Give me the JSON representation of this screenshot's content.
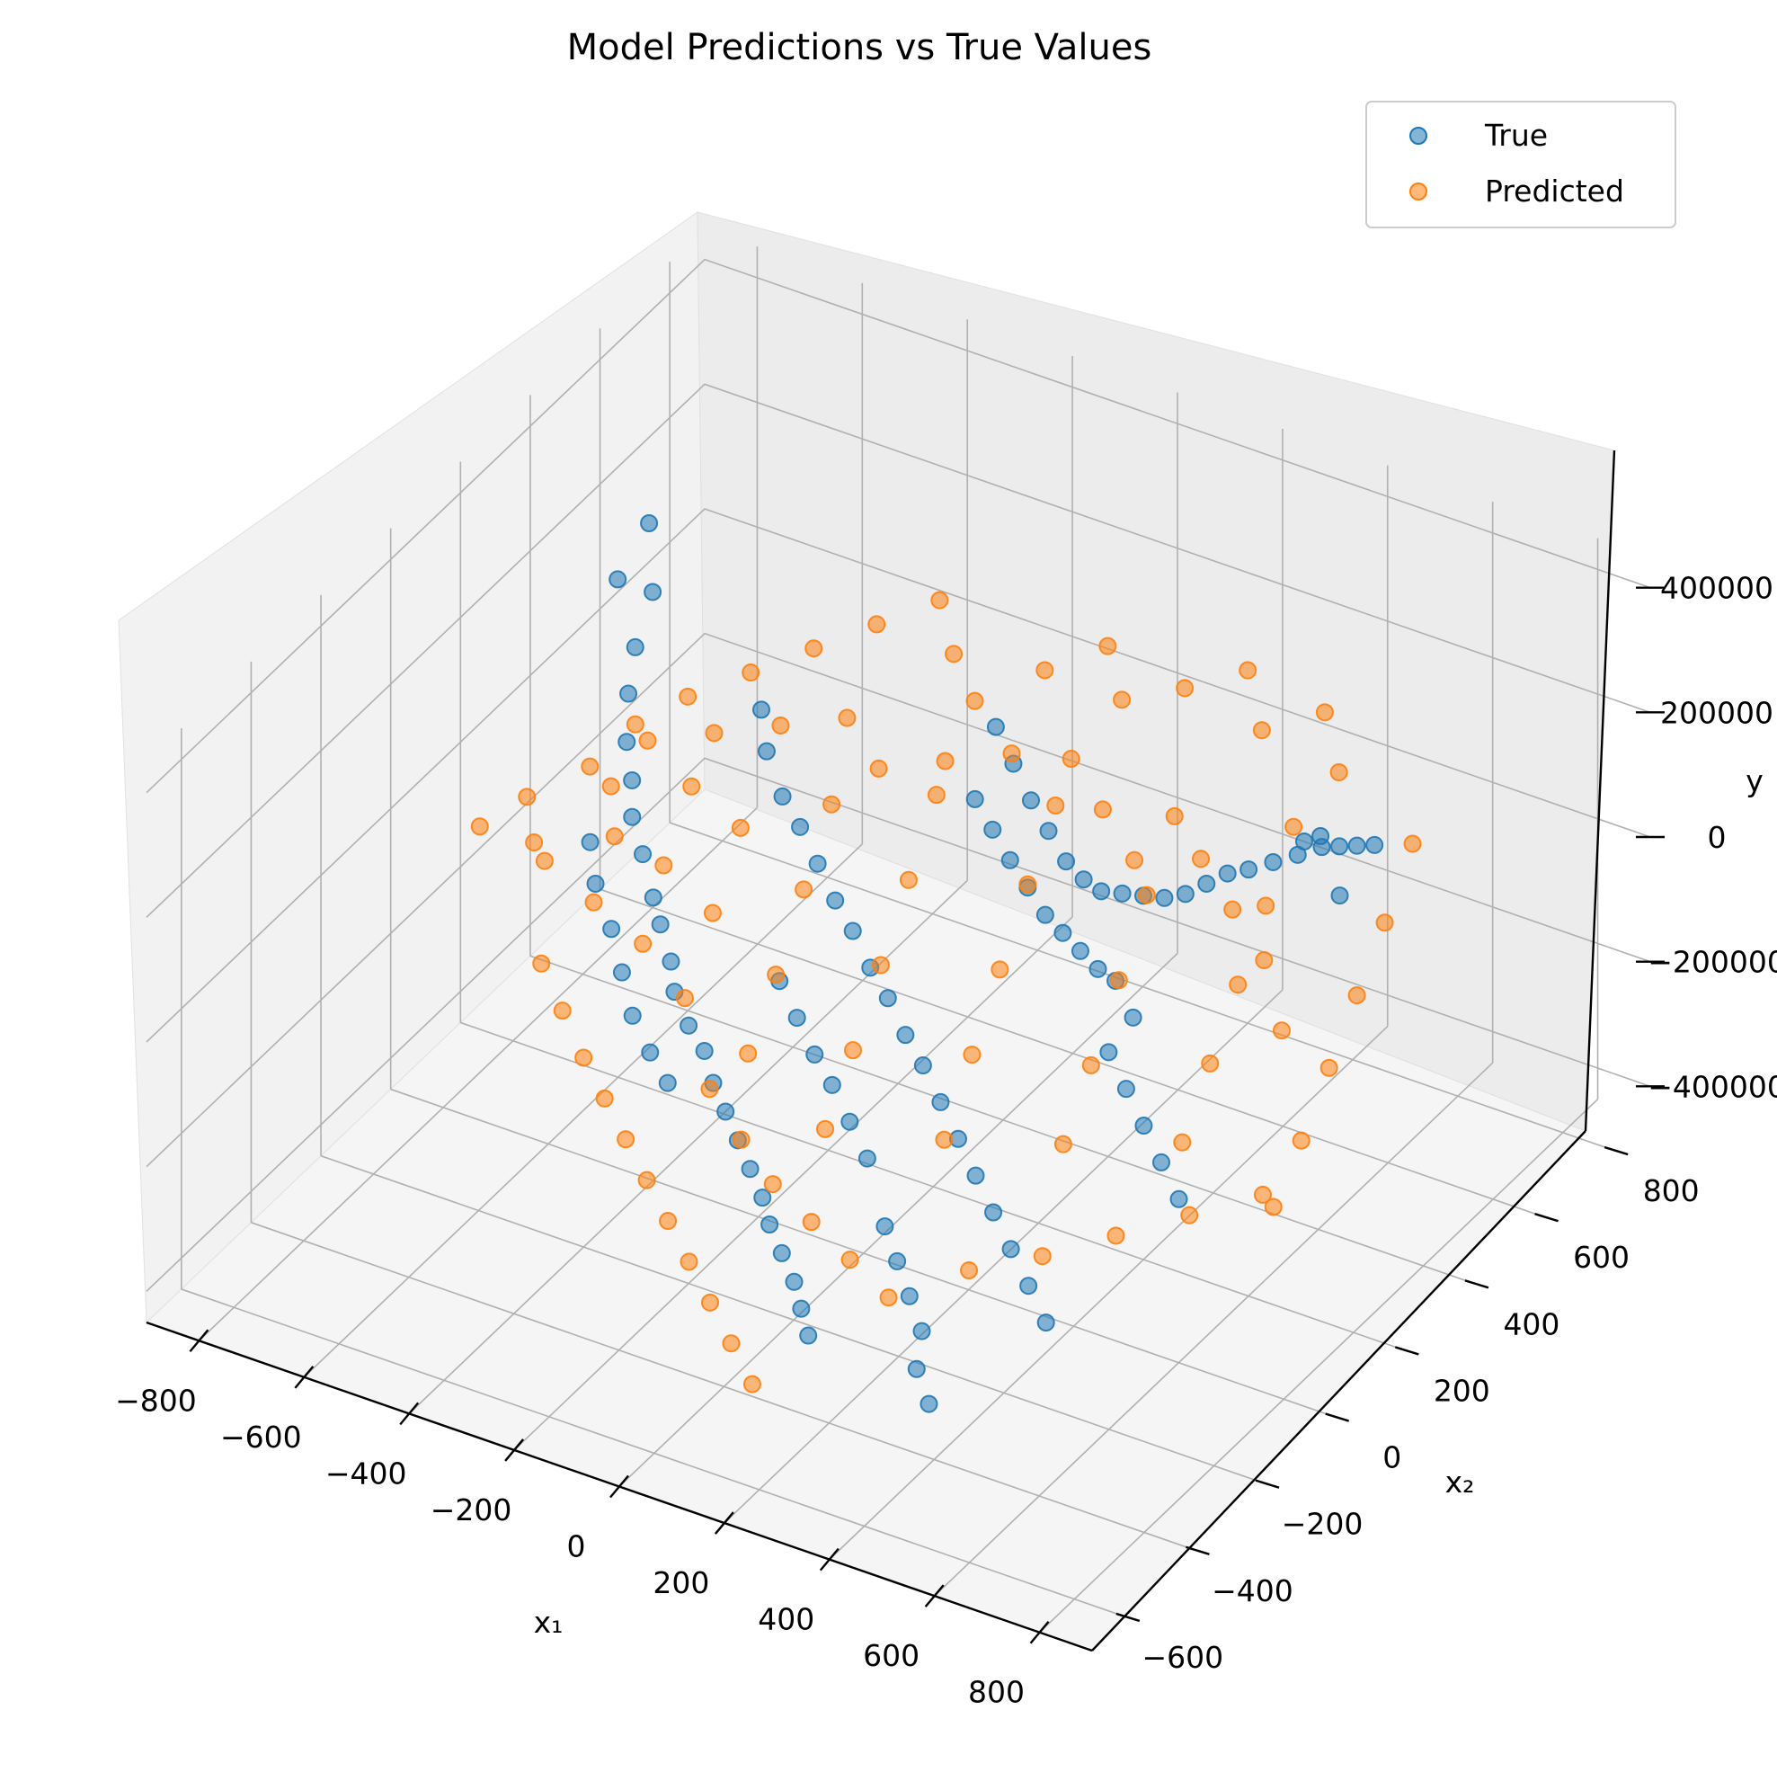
{
  "chart_data": {
    "type": "scatter",
    "projection": "3d",
    "title": "Model Predictions vs True Values",
    "xlabel": "x₁",
    "ylabel": "x₂",
    "zlabel": "y",
    "xlim": [
      -900,
      900
    ],
    "ylim": [
      -700,
      900
    ],
    "zlim": [
      -450000,
      450000
    ],
    "x_ticks": [
      -800,
      -600,
      -400,
      -200,
      0,
      200,
      400,
      600,
      800
    ],
    "y_ticks": [
      -600,
      -400,
      -200,
      0,
      200,
      400,
      600,
      800
    ],
    "z_ticks": [
      -400000,
      -200000,
      0,
      200000,
      400000
    ],
    "x_tick_labels": [
      "−800",
      "−600",
      "−400",
      "−200",
      "0",
      "200",
      "400",
      "600",
      "800"
    ],
    "y_tick_labels": [
      "−600",
      "−400",
      "−200",
      "0",
      "200",
      "400",
      "600",
      "800"
    ],
    "z_tick_labels": [
      "−400000",
      "−200000",
      "0",
      "200000",
      "400000"
    ],
    "grid": true,
    "legend_position": "top-right",
    "series": [
      {
        "name": "True",
        "color": "#1f77b4",
        "points": [
          [
            -820,
            620,
            150000
          ],
          [
            -800,
            500,
            130000
          ],
          [
            -760,
            540,
            100000
          ],
          [
            -740,
            460,
            60000
          ],
          [
            -700,
            380,
            40000
          ],
          [
            -650,
            300,
            20000
          ],
          [
            -600,
            240,
            5000
          ],
          [
            -560,
            180,
            -10000
          ],
          [
            -500,
            120,
            -20000
          ],
          [
            -440,
            60,
            -40000
          ],
          [
            -400,
            20,
            -50000
          ],
          [
            -340,
            -40,
            -60000
          ],
          [
            -300,
            -90,
            -70000
          ],
          [
            -240,
            -140,
            -80000
          ],
          [
            -190,
            -170,
            -90000
          ],
          [
            -140,
            -220,
            -100000
          ],
          [
            -90,
            -260,
            -110000
          ],
          [
            -40,
            -300,
            -120000
          ],
          [
            10,
            -340,
            -130000
          ],
          [
            60,
            -380,
            -140000
          ],
          [
            100,
            -420,
            -150000
          ],
          [
            150,
            -460,
            -160000
          ],
          [
            200,
            -500,
            -170000
          ],
          [
            240,
            -540,
            -180000
          ],
          [
            280,
            -580,
            -190000
          ],
          [
            -120,
            560,
            60000
          ],
          [
            -60,
            520,
            40000
          ],
          [
            0,
            480,
            20000
          ],
          [
            60,
            440,
            10000
          ],
          [
            120,
            400,
            0
          ],
          [
            180,
            360,
            10000
          ],
          [
            240,
            320,
            30000
          ],
          [
            300,
            290,
            60000
          ],
          [
            360,
            260,
            90000
          ],
          [
            420,
            230,
            120000
          ],
          [
            480,
            200,
            160000
          ],
          [
            540,
            170,
            210000
          ],
          [
            600,
            140,
            260000
          ],
          [
            660,
            110,
            300000
          ],
          [
            720,
            90,
            340000
          ],
          [
            780,
            70,
            380000
          ],
          [
            830,
            60,
            430000
          ],
          [
            880,
            40,
            360000
          ],
          [
            560,
            420,
            150000
          ],
          [
            620,
            380,
            180000
          ],
          [
            680,
            340,
            220000
          ],
          [
            740,
            300,
            260000
          ],
          [
            800,
            260,
            300000
          ],
          [
            -500,
            460,
            30000
          ],
          [
            -450,
            400,
            10000
          ],
          [
            -380,
            340,
            -10000
          ],
          [
            -320,
            300,
            -20000
          ],
          [
            -260,
            260,
            -40000
          ],
          [
            -200,
            220,
            -60000
          ],
          [
            -140,
            180,
            -70000
          ],
          [
            -80,
            140,
            -90000
          ],
          [
            -20,
            100,
            -100000
          ],
          [
            40,
            60,
            -120000
          ],
          [
            100,
            20,
            -130000
          ],
          [
            160,
            -20,
            -150000
          ],
          [
            220,
            -60,
            -170000
          ],
          [
            280,
            -100,
            -190000
          ],
          [
            340,
            -140,
            -210000
          ],
          [
            400,
            -180,
            -230000
          ],
          [
            460,
            -220,
            -250000
          ],
          [
            520,
            -260,
            -270000
          ],
          [
            300,
            -320,
            -260000
          ],
          [
            350,
            -360,
            -280000
          ],
          [
            250,
            -280,
            -240000
          ],
          [
            200,
            -240,
            -220000
          ],
          [
            380,
            -420,
            -300000
          ],
          [
            430,
            -460,
            -320000
          ],
          [
            -600,
            120,
            -30000
          ],
          [
            -550,
            60,
            -50000
          ],
          [
            -480,
            0,
            -70000
          ],
          [
            -420,
            -60,
            -90000
          ],
          [
            -360,
            -120,
            -110000
          ],
          [
            -300,
            -160,
            -130000
          ],
          [
            -240,
            -200,
            -140000
          ],
          [
            -160,
            0,
            -60000
          ],
          [
            -100,
            -40,
            -80000
          ],
          [
            -40,
            -80,
            -100000
          ],
          [
            20,
            -120,
            -110000
          ],
          [
            80,
            -160,
            -130000
          ],
          [
            140,
            -200,
            -150000
          ],
          [
            440,
            40,
            -20000
          ],
          [
            500,
            0,
            -40000
          ],
          [
            560,
            -40,
            -60000
          ],
          [
            620,
            -80,
            -80000
          ],
          [
            680,
            -120,
            -100000
          ],
          [
            400,
            120,
            40000
          ],
          [
            460,
            80,
            20000
          ],
          [
            340,
            160,
            20000
          ],
          [
            280,
            200,
            10000
          ],
          [
            220,
            240,
            0
          ],
          [
            160,
            280,
            -10000
          ],
          [
            100,
            320,
            -5000
          ],
          [
            40,
            360,
            0
          ],
          [
            -20,
            400,
            10000
          ],
          [
            -80,
            440,
            20000
          ]
        ]
      },
      {
        "name": "Predicted",
        "color": "#ff7f0e",
        "points": [
          [
            -760,
            200,
            -120000
          ],
          [
            -700,
            140,
            -100000
          ],
          [
            -680,
            300,
            -60000
          ],
          [
            -620,
            220,
            -80000
          ],
          [
            -580,
            100,
            -110000
          ],
          [
            -540,
            320,
            -30000
          ],
          [
            -500,
            180,
            -70000
          ],
          [
            -460,
            60,
            -120000
          ],
          [
            -420,
            280,
            -40000
          ],
          [
            -380,
            140,
            -90000
          ],
          [
            -340,
            0,
            -140000
          ],
          [
            -300,
            360,
            -10000
          ],
          [
            -260,
            220,
            -60000
          ],
          [
            -220,
            80,
            -110000
          ],
          [
            -180,
            -60,
            -150000
          ],
          [
            -140,
            420,
            20000
          ],
          [
            -100,
            280,
            -30000
          ],
          [
            -60,
            140,
            -80000
          ],
          [
            -20,
            0,
            -130000
          ],
          [
            20,
            -140,
            -170000
          ],
          [
            60,
            460,
            40000
          ],
          [
            100,
            320,
            0
          ],
          [
            140,
            180,
            -50000
          ],
          [
            180,
            40,
            -100000
          ],
          [
            220,
            -100,
            -150000
          ],
          [
            260,
            500,
            60000
          ],
          [
            300,
            360,
            20000
          ],
          [
            340,
            220,
            -30000
          ],
          [
            380,
            80,
            -80000
          ],
          [
            420,
            -60,
            -120000
          ],
          [
            460,
            540,
            80000
          ],
          [
            500,
            400,
            40000
          ],
          [
            540,
            260,
            0
          ],
          [
            580,
            120,
            -40000
          ],
          [
            620,
            -20,
            -80000
          ],
          [
            660,
            580,
            90000
          ],
          [
            700,
            440,
            50000
          ],
          [
            740,
            300,
            20000
          ],
          [
            780,
            160,
            -10000
          ],
          [
            820,
            20,
            -40000
          ],
          [
            860,
            -120,
            -60000
          ],
          [
            -700,
            400,
            -20000
          ],
          [
            -640,
            460,
            10000
          ],
          [
            -560,
            520,
            40000
          ],
          [
            -480,
            580,
            70000
          ],
          [
            -400,
            640,
            100000
          ],
          [
            -320,
            700,
            130000
          ],
          [
            -240,
            620,
            110000
          ],
          [
            -160,
            560,
            90000
          ],
          [
            -80,
            640,
            120000
          ],
          [
            0,
            700,
            150000
          ],
          [
            80,
            620,
            130000
          ],
          [
            160,
            680,
            140000
          ],
          [
            240,
            740,
            160000
          ],
          [
            320,
            660,
            130000
          ],
          [
            400,
            720,
            150000
          ],
          [
            480,
            640,
            120000
          ],
          [
            -600,
            -20,
            -150000
          ],
          [
            -520,
            -80,
            -170000
          ],
          [
            -440,
            -140,
            -190000
          ],
          [
            -360,
            -200,
            -200000
          ],
          [
            -280,
            -260,
            -210000
          ],
          [
            -200,
            -320,
            -220000
          ],
          [
            -120,
            -380,
            -230000
          ],
          [
            -40,
            -440,
            -240000
          ],
          [
            40,
            -500,
            -250000
          ],
          [
            120,
            -560,
            -260000
          ],
          [
            200,
            -620,
            -270000
          ],
          [
            0,
            -260,
            -200000
          ],
          [
            100,
            -300,
            -210000
          ],
          [
            200,
            -340,
            -220000
          ],
          [
            300,
            -380,
            -230000
          ],
          [
            -100,
            -200,
            -190000
          ],
          [
            -200,
            -140,
            -170000
          ],
          [
            400,
            -300,
            -200000
          ],
          [
            500,
            -240,
            -180000
          ],
          [
            600,
            -180,
            -150000
          ],
          [
            700,
            -120,
            -120000
          ],
          [
            800,
            -60,
            -90000
          ],
          [
            650,
            220,
            -20000
          ],
          [
            550,
            320,
            10000
          ],
          [
            450,
            380,
            30000
          ],
          [
            350,
            440,
            50000
          ],
          [
            250,
            400,
            40000
          ],
          [
            150,
            460,
            60000
          ],
          [
            50,
            520,
            80000
          ],
          [
            -50,
            500,
            70000
          ],
          [
            -150,
            460,
            50000
          ],
          [
            -250,
            420,
            30000
          ],
          [
            -350,
            480,
            50000
          ],
          [
            -450,
            440,
            30000
          ],
          [
            -550,
            400,
            10000
          ],
          [
            -650,
            360,
            -10000
          ],
          [
            -720,
            300,
            -40000
          ],
          [
            -800,
            240,
            -80000
          ],
          [
            -850,
            180,
            -110000
          ]
        ]
      }
    ]
  }
}
